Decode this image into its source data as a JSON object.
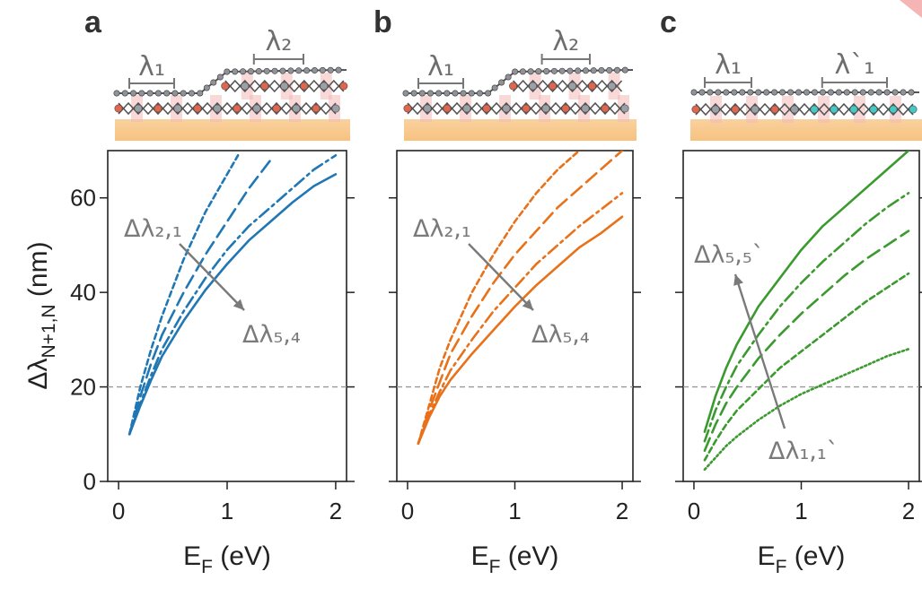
{
  "panels": [
    {
      "letter": "a",
      "lambda_left": "λ₁",
      "lambda_right": "λ₂",
      "annotation_start": "Δλ₂,₁",
      "annotation_end": "Δλ₅,₄",
      "schematic_type": "bilayer-step"
    },
    {
      "letter": "b",
      "lambda_left": "λ₁",
      "lambda_right": "λ₂",
      "annotation_start": "Δλ₂,₁",
      "annotation_end": "Δλ₅,₄",
      "schematic_type": "bilayer-step"
    },
    {
      "letter": "c",
      "lambda_left": "λ₁",
      "lambda_right": "λ`₁",
      "annotation_start": "Δλ₁,₁`",
      "annotation_end": "Δλ₅,₅`",
      "schematic_type": "lateral-heterostructure"
    }
  ],
  "axis_labels": {
    "y_main": "Δλ",
    "y_sub": "N+1,N",
    "y_unit": "(nm)",
    "x_main": "E",
    "x_sub": "F",
    "x_unit": "(eV)"
  },
  "colors": {
    "panel_a": "#1f77b4",
    "panel_b": "#e8711a",
    "panel_c": "#3a9a2e",
    "substrate": "#f7c27f",
    "reference_line": "#999999",
    "annotation": "#7a7a7a"
  },
  "chart_data": [
    {
      "type": "line",
      "panel": "a",
      "xlabel": "E_F (eV)",
      "ylabel": "Δλ_N+1,N (nm)",
      "xlim": [
        -0.1,
        2.1
      ],
      "ylim": [
        0,
        70
      ],
      "xticks": [
        0,
        1,
        2
      ],
      "yticks": [
        0,
        20,
        40,
        60
      ],
      "reference_line_y": 20,
      "grid": false,
      "series": [
        {
          "style": "dotted-short",
          "x": [
            0.1,
            0.2,
            0.3,
            0.4,
            0.5,
            0.6,
            0.7,
            0.8,
            0.9,
            1.0,
            1.1
          ],
          "y": [
            10,
            20,
            28,
            35,
            41,
            47,
            52,
            57,
            61,
            65,
            69
          ]
        },
        {
          "style": "dashed",
          "x": [
            0.1,
            0.2,
            0.3,
            0.4,
            0.6,
            0.8,
            1.0,
            1.2,
            1.4
          ],
          "y": [
            10,
            18,
            25,
            31,
            40,
            48,
            55,
            62,
            68
          ]
        },
        {
          "style": "dash-dot",
          "x": [
            0.1,
            0.2,
            0.3,
            0.4,
            0.6,
            0.8,
            1.0,
            1.2,
            1.4,
            1.6,
            1.8,
            2.0
          ],
          "y": [
            10,
            16.5,
            22.5,
            28,
            36,
            43,
            49,
            54,
            58,
            62,
            66,
            69
          ]
        },
        {
          "style": "solid",
          "x": [
            0.1,
            0.2,
            0.3,
            0.4,
            0.6,
            0.8,
            1.0,
            1.2,
            1.4,
            1.6,
            1.8,
            2.0
          ],
          "y": [
            10,
            16,
            21.5,
            26.5,
            34,
            40.5,
            46,
            51,
            55,
            59,
            62.5,
            65
          ]
        }
      ]
    },
    {
      "type": "line",
      "panel": "b",
      "xlabel": "E_F (eV)",
      "xlim": [
        -0.1,
        2.1
      ],
      "ylim": [
        0,
        70
      ],
      "xticks": [
        0,
        1,
        2
      ],
      "reference_line_y": 20,
      "grid": false,
      "series": [
        {
          "style": "dotted-short",
          "x": [
            0.1,
            0.2,
            0.3,
            0.4,
            0.6,
            0.8,
            1.0,
            1.2,
            1.4,
            1.6
          ],
          "y": [
            8,
            16,
            24,
            30,
            40,
            48,
            55,
            61,
            66,
            70
          ]
        },
        {
          "style": "dashed",
          "x": [
            0.1,
            0.2,
            0.3,
            0.4,
            0.6,
            0.8,
            1.0,
            1.2,
            1.4,
            1.6,
            1.8,
            2.0
          ],
          "y": [
            8,
            15,
            21,
            27,
            35,
            42,
            48,
            53,
            58,
            62,
            66,
            70
          ]
        },
        {
          "style": "dash-dot",
          "x": [
            0.1,
            0.2,
            0.3,
            0.4,
            0.6,
            0.8,
            1.0,
            1.2,
            1.4,
            1.6,
            1.8,
            2.0
          ],
          "y": [
            8,
            14,
            19,
            23.5,
            30,
            36,
            41,
            46,
            50,
            54,
            57.5,
            61
          ]
        },
        {
          "style": "solid",
          "x": [
            0.1,
            0.2,
            0.3,
            0.4,
            0.6,
            0.8,
            1.0,
            1.2,
            1.4,
            1.6,
            1.8,
            2.0
          ],
          "y": [
            8,
            13.5,
            18,
            21.5,
            27,
            32,
            37,
            41.5,
            45.5,
            49.5,
            52.5,
            56
          ]
        }
      ]
    },
    {
      "type": "line",
      "panel": "c",
      "xlabel": "E_F (eV)",
      "xlim": [
        -0.1,
        2.1
      ],
      "ylim": [
        0,
        70
      ],
      "xticks": [
        0,
        1,
        2
      ],
      "reference_line_y": 20,
      "grid": false,
      "series": [
        {
          "style": "solid",
          "x": [
            0.1,
            0.2,
            0.3,
            0.4,
            0.6,
            0.8,
            1.0,
            1.2,
            1.4,
            1.6,
            1.8,
            2.0
          ],
          "y": [
            10.5,
            18,
            24,
            29,
            37,
            43,
            49,
            54,
            58,
            62,
            66,
            70
          ]
        },
        {
          "style": "dash-dot",
          "x": [
            0.1,
            0.2,
            0.3,
            0.4,
            0.6,
            0.8,
            1.0,
            1.2,
            1.4,
            1.6,
            1.8,
            2.0
          ],
          "y": [
            8.5,
            15,
            20,
            24.5,
            31,
            37,
            42,
            46.5,
            50.5,
            54.5,
            58,
            61
          ]
        },
        {
          "style": "dashed",
          "x": [
            0.1,
            0.2,
            0.3,
            0.4,
            0.6,
            0.8,
            1.0,
            1.2,
            1.4,
            1.6,
            1.8,
            2.0
          ],
          "y": [
            6.5,
            12,
            16.5,
            20,
            26,
            31,
            35.5,
            39.5,
            43.5,
            47,
            50,
            53
          ]
        },
        {
          "style": "dotted-short",
          "x": [
            0.1,
            0.2,
            0.3,
            0.4,
            0.6,
            0.8,
            1.0,
            1.2,
            1.4,
            1.6,
            1.8,
            2.0
          ],
          "y": [
            4.5,
            8.5,
            12,
            15,
            19.5,
            24,
            27.5,
            31,
            34.5,
            38,
            41,
            44
          ]
        },
        {
          "style": "dotted",
          "x": [
            0.1,
            0.2,
            0.3,
            0.4,
            0.6,
            0.8,
            1.0,
            1.2,
            1.4,
            1.6,
            1.8,
            2.0
          ],
          "y": [
            2.5,
            5,
            7.5,
            9.5,
            13,
            16,
            18.5,
            20.5,
            22.5,
            24.5,
            26.5,
            28
          ]
        }
      ]
    }
  ]
}
